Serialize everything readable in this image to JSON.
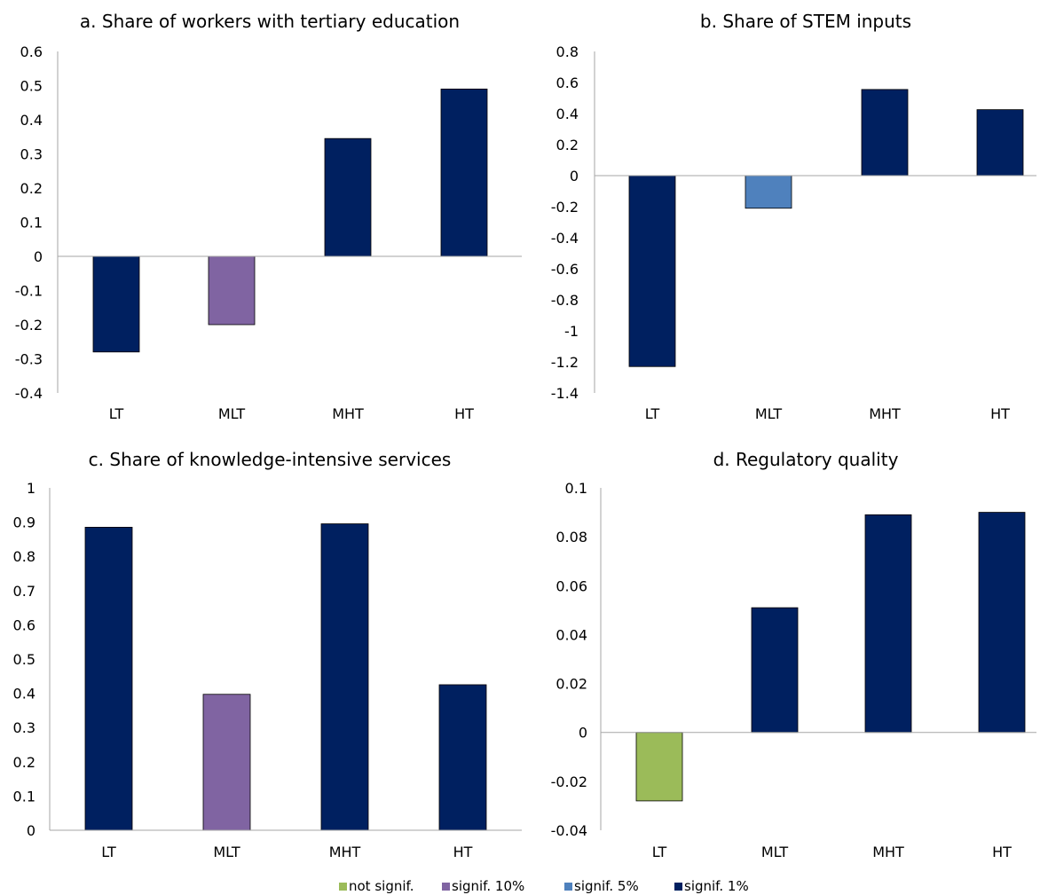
{
  "colors": {
    "not_signif": "#9BBB59",
    "signif_10": "#8064A2",
    "signif_5": "#4F81BD",
    "signif_1": "#002060",
    "axis": "#A6A6A6"
  },
  "legend": [
    {
      "label": "not signif.",
      "key": "not_signif"
    },
    {
      "label": "signif. 10%",
      "key": "signif_10"
    },
    {
      "label": "signif. 5%",
      "key": "signif_5"
    },
    {
      "label": "signif. 1%",
      "key": "signif_1"
    }
  ],
  "chart_data": [
    {
      "type": "bar",
      "title": "a. Share of workers with tertiary education",
      "categories": [
        "LT",
        "MLT",
        "MHT",
        "HT"
      ],
      "values": [
        -0.28,
        -0.2,
        0.345,
        0.49
      ],
      "significance": [
        "signif_1",
        "signif_10",
        "signif_1",
        "signif_1"
      ],
      "ylim": [
        -0.4,
        0.6
      ],
      "ticks": [
        0.6,
        0.5,
        0.4,
        0.3,
        0.2,
        0.1,
        0,
        -0.1,
        -0.2,
        -0.3,
        -0.4
      ],
      "tick_labels": [
        "0.6",
        "0.5",
        "0.4",
        "0.3",
        "0.2",
        "0.1",
        "0",
        "-0.1",
        "-0.2",
        "-0.3",
        "-0.4"
      ]
    },
    {
      "type": "bar",
      "title": "b. Share of STEM inputs",
      "categories": [
        "LT",
        "MLT",
        "MHT",
        "HT"
      ],
      "values": [
        -1.23,
        -0.21,
        0.555,
        0.425
      ],
      "significance": [
        "signif_1",
        "signif_5",
        "signif_1",
        "signif_1"
      ],
      "ylim": [
        -1.4,
        0.8
      ],
      "ticks": [
        0.8,
        0.6,
        0.4,
        0.2,
        0,
        -0.2,
        -0.4,
        -0.6,
        -0.8,
        -1,
        -1.2,
        -1.4
      ],
      "tick_labels": [
        "0.8",
        "0.6",
        "0.4",
        "0.2",
        "0",
        "-0.2",
        "-0.4",
        "-0.6",
        "-0.8",
        "-1",
        "-1.2",
        "-1.4"
      ]
    },
    {
      "type": "bar",
      "title": "c. Share of knowledge-intensive services",
      "categories": [
        "LT",
        "MLT",
        "MHT",
        "HT"
      ],
      "values": [
        0.885,
        0.397,
        0.895,
        0.425
      ],
      "significance": [
        "signif_1",
        "signif_10",
        "signif_1",
        "signif_1"
      ],
      "ylim": [
        0,
        1
      ],
      "ticks": [
        1,
        0.9,
        0.8,
        0.7,
        0.6,
        0.5,
        0.4,
        0.3,
        0.2,
        0.1,
        0
      ],
      "tick_labels": [
        "1",
        "0.9",
        "0.8",
        "0.7",
        "0.6",
        "0.5",
        "0.4",
        "0.3",
        "0.2",
        "0.1",
        "0"
      ]
    },
    {
      "type": "bar",
      "title": "d. Regulatory quality",
      "categories": [
        "LT",
        "MLT",
        "MHT",
        "HT"
      ],
      "values": [
        -0.028,
        0.051,
        0.089,
        0.09
      ],
      "significance": [
        "not_signif",
        "signif_1",
        "signif_1",
        "signif_1"
      ],
      "ylim": [
        -0.04,
        0.1
      ],
      "ticks": [
        0.1,
        0.08,
        0.06,
        0.04,
        0.02,
        0,
        -0.02,
        -0.04
      ],
      "tick_labels": [
        "0.1",
        "0.08",
        "0.06",
        "0.04",
        "0.02",
        "0",
        "-0.02",
        "-0.04"
      ]
    }
  ]
}
